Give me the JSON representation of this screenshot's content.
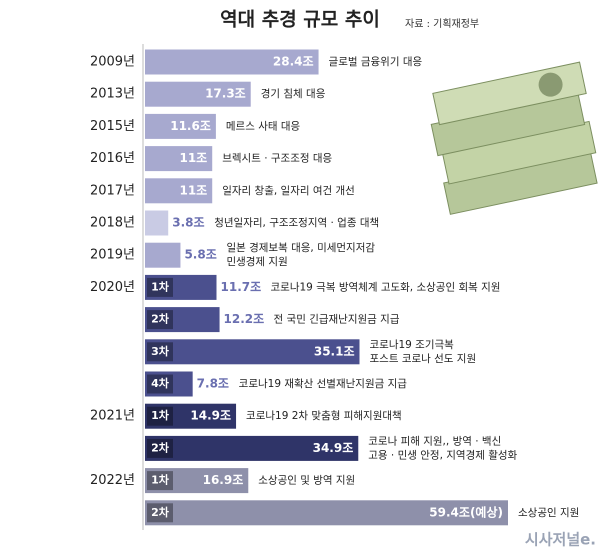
{
  "chart_data": {
    "type": "bar",
    "orientation": "horizontal",
    "title": "역대 추경 규모 추이",
    "source": "자료 : 기획재정부",
    "watermark": "시사저널e.",
    "categories": [
      "2009년",
      "2013년",
      "2015년",
      "2016년",
      "2017년",
      "2018년",
      "2019년",
      "2020년",
      null,
      null,
      null,
      "2021년",
      null,
      "2022년",
      null
    ],
    "rounds": [
      null,
      null,
      null,
      null,
      null,
      null,
      null,
      "1차",
      "2차",
      "3차",
      "4차",
      "1차",
      "2차",
      "1차",
      "2차"
    ],
    "values": [
      28.4,
      17.3,
      11.6,
      11,
      11,
      3.8,
      5.8,
      11.7,
      12.2,
      35.1,
      7.8,
      14.9,
      34.9,
      16.9,
      59.4
    ],
    "value_labels": [
      "28.4조",
      "17.3조",
      "11.6조",
      "11조",
      "11조",
      "3.8조",
      "5.8조",
      "11.7조",
      "12.2조",
      "35.1조",
      "7.8조",
      "14.9조",
      "34.9조",
      "16.9조",
      "59.4조(예상)"
    ],
    "colors": [
      "#a7a9cf",
      "#a7a9cf",
      "#a7a9cf",
      "#a7a9cf",
      "#a7a9cf",
      "#c9cbe4",
      "#a7a9cf",
      "#4b508e",
      "#4b508e",
      "#4b508e",
      "#4b508e",
      "#2f3468",
      "#2f3468",
      "#8e90aa",
      "#8e90aa"
    ],
    "annotations": [
      [
        "글로벌 금융위기 대응"
      ],
      [
        "경기 침체 대응"
      ],
      [
        "메르스 사태 대응"
      ],
      [
        "브렉시트 · 구조조정 대응"
      ],
      [
        "일자리 창출, 일자리 여건 개선"
      ],
      [
        "청년일자리, 구조조정지역 · 업종 대책"
      ],
      [
        "일본 경제보복 대응, 미세먼지저감",
        "민생경제 지원"
      ],
      [
        "코로나19 극복 방역체계 고도화, 소상공인 회복 지원"
      ],
      [
        "전 국민 긴급재난지원금 지급"
      ],
      [
        "코로나19 조기극복",
        "포스트 코로나 선도 지원"
      ],
      [
        "코로나19 재확산 선별재난지원금 지급"
      ],
      [
        "코로나19 2차 맞춤형 피해지원대책"
      ],
      [
        "코로나 피해 지원,, 방역 · 백신",
        "고용 · 민생 안정, 지역경제 활성화"
      ],
      [
        "소상공인 및 방역 지원"
      ],
      [
        "소상공인 지원"
      ]
    ]
  }
}
